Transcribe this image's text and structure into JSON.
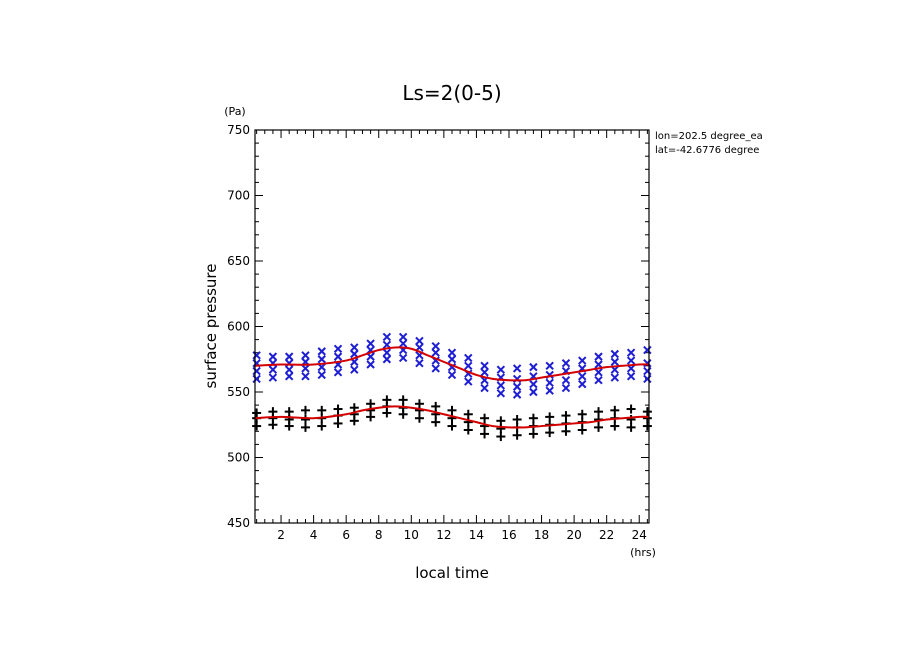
{
  "chart_data": {
    "type": "scatter",
    "title": "Ls=2(0-5)",
    "xlabel": "local time",
    "ylabel": "surface pressure",
    "x_unit": "(hrs)",
    "y_unit": "(Pa)",
    "xlim": [
      0.4,
      24.6
    ],
    "ylim": [
      450,
      750
    ],
    "x_ticks": [
      2,
      4,
      6,
      8,
      10,
      12,
      14,
      16,
      18,
      20,
      22,
      24
    ],
    "y_ticks": [
      450,
      500,
      550,
      600,
      650,
      700,
      750
    ],
    "annotation": [
      "lon=202.5 degree_ea",
      "lat=-42.6776 degree"
    ],
    "grid": false,
    "x_times": [
      0.5,
      1.5,
      2.5,
      3.5,
      4.5,
      5.5,
      6.5,
      7.5,
      8.5,
      9.5,
      10.5,
      11.5,
      12.5,
      13.5,
      14.5,
      15.5,
      16.5,
      17.5,
      18.5,
      19.5,
      20.5,
      21.5,
      22.5,
      23.5,
      24.5
    ],
    "series": [
      {
        "marker": "x",
        "color": "#1e1ed2",
        "samples": [
          [
            560,
            566,
            572,
            578
          ],
          [
            561,
            567,
            572,
            577
          ],
          [
            562,
            567,
            572,
            577
          ],
          [
            562,
            568,
            573,
            578
          ],
          [
            563,
            569,
            575,
            581
          ],
          [
            565,
            571,
            577,
            583
          ],
          [
            567,
            573,
            579,
            584
          ],
          [
            571,
            577,
            582,
            587
          ],
          [
            575,
            580,
            586,
            592
          ],
          [
            576,
            582,
            587,
            592
          ],
          [
            572,
            578,
            584,
            589
          ],
          [
            568,
            574,
            580,
            585
          ],
          [
            563,
            569,
            575,
            580
          ],
          [
            558,
            564,
            570,
            576
          ],
          [
            553,
            559,
            565,
            570
          ],
          [
            549,
            555,
            561,
            567
          ],
          [
            548,
            554,
            560,
            568
          ],
          [
            550,
            556,
            562,
            569
          ],
          [
            551,
            557,
            563,
            570
          ],
          [
            553,
            559,
            566,
            572
          ],
          [
            556,
            562,
            568,
            574
          ],
          [
            559,
            565,
            571,
            577
          ],
          [
            561,
            567,
            573,
            579
          ],
          [
            562,
            568,
            574,
            580
          ],
          [
            560,
            566,
            572,
            582
          ]
        ]
      },
      {
        "marker": "+",
        "color": "#000000",
        "samples": [
          [
            524,
            530,
            534
          ],
          [
            525,
            530,
            535
          ],
          [
            524,
            529,
            535
          ],
          [
            523,
            529,
            536
          ],
          [
            524,
            530,
            536
          ],
          [
            526,
            532,
            537
          ],
          [
            528,
            533,
            538
          ],
          [
            531,
            536,
            541
          ],
          [
            534,
            539,
            544
          ],
          [
            533,
            538,
            544
          ],
          [
            530,
            536,
            541
          ],
          [
            527,
            533,
            539
          ],
          [
            524,
            530,
            536
          ],
          [
            521,
            527,
            533
          ],
          [
            518,
            524,
            530
          ],
          [
            516,
            522,
            528
          ],
          [
            517,
            523,
            529
          ],
          [
            518,
            524,
            530
          ],
          [
            519,
            525,
            531
          ],
          [
            520,
            526,
            532
          ],
          [
            521,
            527,
            533
          ],
          [
            523,
            529,
            535
          ],
          [
            524,
            530,
            536
          ],
          [
            523,
            529,
            537
          ],
          [
            524,
            530,
            535
          ]
        ]
      }
    ],
    "mean_lines": [
      {
        "color": "#d40000",
        "x": [
          0.4,
          2,
          4,
          6,
          7,
          8,
          9,
          10,
          11,
          12,
          13,
          14,
          15,
          16,
          17,
          18,
          19,
          20,
          21,
          22,
          23,
          24,
          24.6
        ],
        "y": [
          570,
          571,
          571,
          574,
          578,
          582,
          584,
          583,
          578,
          573,
          568,
          563,
          560,
          559,
          559,
          561,
          563,
          565,
          567,
          569,
          570,
          571,
          571
        ]
      },
      {
        "color": "#d40000",
        "x": [
          0.4,
          2,
          4,
          6,
          7,
          8,
          9,
          10,
          11,
          12,
          13,
          14,
          15,
          16,
          17,
          18,
          19,
          20,
          21,
          22,
          23,
          24,
          24.6
        ],
        "y": [
          530,
          531,
          530,
          533,
          536,
          538,
          539,
          538,
          536,
          533,
          530,
          527,
          524,
          523,
          523,
          524,
          525,
          526,
          527,
          529,
          530,
          531,
          531
        ]
      }
    ]
  }
}
